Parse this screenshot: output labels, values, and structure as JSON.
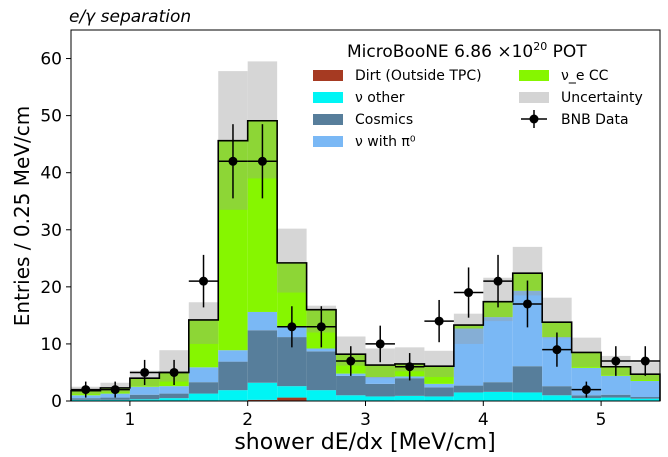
{
  "chart_data": {
    "type": "bar",
    "top_left_label": "e/γ separation",
    "title": "MicroBooNE 6.86 ×10",
    "title_exponent": "20",
    "title_suffix": " POT",
    "xlabel": "shower dE/dx [MeV/cm]",
    "ylabel": "Entries / 0.25 MeV/cm",
    "xlim": [
      0.5,
      5.5
    ],
    "ylim": [
      0,
      65
    ],
    "xticks": [
      "1",
      "2",
      "3",
      "4",
      "5"
    ],
    "yticks": [
      "0",
      "10",
      "20",
      "30",
      "40",
      "50",
      "60"
    ],
    "bin_edges": [
      0.5,
      0.75,
      1.0,
      1.25,
      1.5,
      1.75,
      2.0,
      2.25,
      2.5,
      2.75,
      3.0,
      3.25,
      3.5,
      3.75,
      4.0,
      4.25,
      4.5,
      4.75,
      5.0,
      5.25,
      5.5
    ],
    "stack_order": [
      "dirt",
      "nu_other",
      "cosmics",
      "nu_pi0",
      "nue_cc"
    ],
    "series": [
      {
        "key": "dirt",
        "name": "Dirt (Outside TPC)",
        "color": "#a63a22",
        "values": [
          0,
          0,
          0,
          0,
          0,
          0.1,
          0.2,
          0.6,
          0.1,
          0.1,
          0,
          0.1,
          0,
          0.1,
          0,
          0,
          0,
          0,
          0,
          0
        ]
      },
      {
        "key": "nu_other",
        "name": "ν other",
        "color": "#00f5f5",
        "values": [
          0.2,
          0.2,
          0.3,
          0.5,
          1.3,
          1.8,
          3.0,
          2.0,
          1.8,
          0.9,
          0.8,
          0.8,
          0.8,
          1.4,
          1.6,
          1.5,
          1.0,
          0.5,
          0.6,
          0.4
        ]
      },
      {
        "key": "cosmics",
        "name": "Cosmics",
        "color": "#577e9b",
        "values": [
          0.3,
          0.4,
          0.8,
          0.8,
          2.0,
          5.0,
          9.2,
          8.6,
          6.8,
          3.4,
          2.2,
          3.1,
          1.6,
          1.2,
          1.7,
          4.6,
          1.6,
          0.5,
          0.5,
          0.3
        ]
      },
      {
        "key": "nu_pi0",
        "name": "ν with π⁰",
        "color": "#7ab8f5",
        "values": [
          0.5,
          0.7,
          1.4,
          1.3,
          2.6,
          2.0,
          3.2,
          1.8,
          0.5,
          0.4,
          1.2,
          0.3,
          0.6,
          10.0,
          11.4,
          13.2,
          8.6,
          4.8,
          3.3,
          2.8
        ]
      },
      {
        "key": "nue_cc",
        "name": "ν_e CC",
        "color": "#86f600",
        "values": [
          0.8,
          1.0,
          1.5,
          2.4,
          8.3,
          36.7,
          33.5,
          11.2,
          6.8,
          3.4,
          2.1,
          2.2,
          3.1,
          0.6,
          2.7,
          3.1,
          2.6,
          2.7,
          1.6,
          1.2
        ]
      }
    ],
    "uncertainty": {
      "name": "Uncertainty",
      "color": "#d4d4d4",
      "low": [
        1.2,
        1.5,
        2.6,
        3.4,
        10.0,
        33.5,
        39.0,
        19.0,
        12.0,
        6.2,
        4.0,
        5.2,
        4.2,
        10.0,
        14.0,
        18.5,
        11.0,
        6.0,
        4.5,
        3.7
      ],
      "high": [
        2.5,
        3.2,
        5.3,
        8.9,
        17.3,
        57.8,
        59.5,
        30.2,
        16.7,
        11.3,
        9.2,
        9.4,
        8.8,
        15.3,
        21.6,
        27.0,
        18.1,
        11.1,
        7.9,
        6.8
      ]
    },
    "data": {
      "name": "BNB Data",
      "color": "#000000",
      "x": [
        0.625,
        0.875,
        1.125,
        1.375,
        1.625,
        1.875,
        2.125,
        2.375,
        2.625,
        2.875,
        3.125,
        3.375,
        3.625,
        3.875,
        4.125,
        4.375,
        4.625,
        4.875,
        5.125,
        5.375
      ],
      "y": [
        2,
        2,
        5,
        5,
        21,
        42,
        42,
        13,
        13,
        7,
        10,
        6,
        14,
        19,
        21,
        17,
        9,
        2,
        7,
        7
      ],
      "yerr": [
        1.4,
        1.4,
        2.2,
        2.2,
        4.6,
        6.5,
        6.5,
        3.6,
        3.6,
        2.6,
        3.2,
        2.4,
        3.7,
        4.4,
        4.6,
        4.1,
        3.0,
        1.4,
        2.6,
        2.6
      ]
    },
    "legend_placement": "top-right",
    "grid": false
  }
}
